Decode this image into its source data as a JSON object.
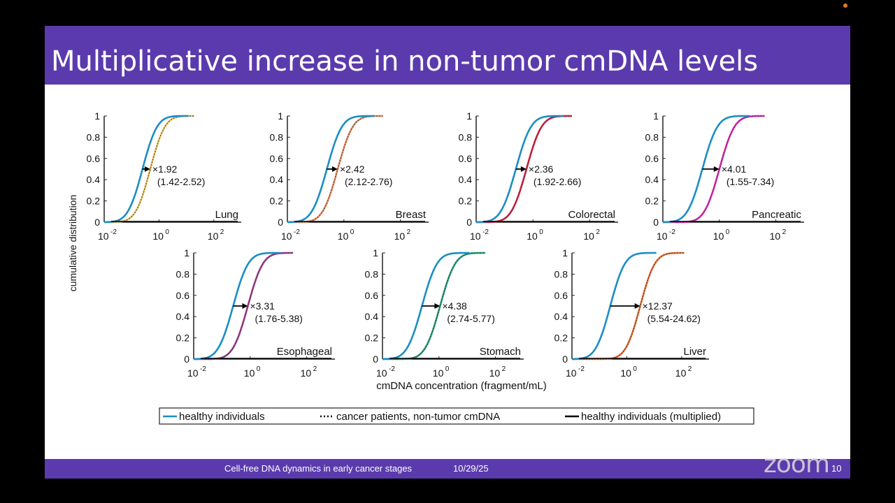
{
  "slide": {
    "title": "Multiplicative increase in non-tumor cmDNA levels",
    "footer_text": "Cell-free DNA dynamics in early cancer stages",
    "footer_date": "10/29/25",
    "page_number": "10",
    "watermark": "zoom"
  },
  "colors": {
    "title_bar": "#5b3aad",
    "healthy": "#1a8ec4",
    "Lung": "#f2c35b",
    "Breast": "#f08a5d",
    "Colorectal": "#e0183c",
    "Pancreatic": "#e61fb6",
    "Esophageal": "#a3368f",
    "Stomach": "#1f9f7a",
    "Liver": "#ee6a2a"
  },
  "chart_data": {
    "type": "line",
    "ylabel": "cumulative distribution",
    "xlabel": "cmDNA concentration (fragment/mL)",
    "xscale": "log",
    "xlim": [
      0.01,
      1000
    ],
    "ylim": [
      0,
      1
    ],
    "yticks": [
      "0",
      "0.2",
      "0.4",
      "0.6",
      "0.8",
      "1"
    ],
    "xticks": [
      "10",
      "10",
      "10"
    ],
    "xtick_exponents": [
      "-2",
      "0",
      "2"
    ],
    "legend": [
      {
        "label": "healthy individuals",
        "style": "solid",
        "color": "#1a8ec4"
      },
      {
        "label": "cancer patients, non-tumor cmDNA",
        "style": "dotted",
        "color": "#000000"
      },
      {
        "label": "healthy individuals (multiplied)",
        "style": "solid",
        "color": "#000000"
      }
    ],
    "healthy_median": 0.25,
    "panels": [
      {
        "name": "Lung",
        "factor": "×1.92",
        "ci": "(1.42-2.52)",
        "multiplier": 1.92
      },
      {
        "name": "Breast",
        "factor": "×2.42",
        "ci": "(2.12-2.76)",
        "multiplier": 2.42
      },
      {
        "name": "Colorectal",
        "factor": "×2.36",
        "ci": "(1.92-2.66)",
        "multiplier": 2.36
      },
      {
        "name": "Pancreatic",
        "factor": "×4.01",
        "ci": "(1.55-7.34)",
        "multiplier": 4.01
      },
      {
        "name": "Esophageal",
        "factor": "×3.31",
        "ci": "(1.76-5.38)",
        "multiplier": 3.31
      },
      {
        "name": "Stomach",
        "factor": "×4.38",
        "ci": "(2.74-5.77)",
        "multiplier": 4.38
      },
      {
        "name": "Liver",
        "factor": "×12.37",
        "ci": "(5.54-24.62)",
        "multiplier": 12.37
      }
    ]
  }
}
